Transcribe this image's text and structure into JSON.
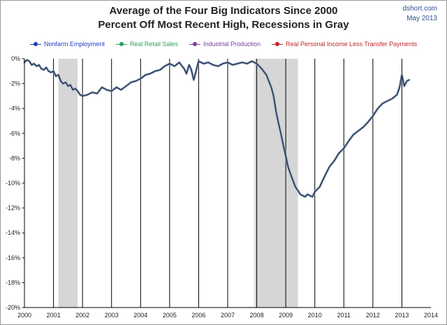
{
  "header": {
    "title_line1": "Average of the Four Big Indicators Since 2000",
    "title_line2": "Percent Off Most Recent High, Recessions in Gray",
    "source_line1": "dshort.com",
    "source_line2": "May 2013"
  },
  "chart_data": {
    "type": "line",
    "title": "Average of the Four Big Indicators Since 2000 Percent Off Most Recent High, Recessions in Gray",
    "xlabel": "",
    "ylabel": "",
    "xlim": [
      2000,
      2014
    ],
    "ylim": [
      -20,
      0
    ],
    "grid": "vertical lines at each year",
    "legend_position": "top",
    "x_ticks": [
      "2000",
      "2001",
      "2002",
      "2003",
      "2004",
      "2005",
      "2006",
      "2007",
      "2008",
      "2009",
      "2010",
      "2011",
      "2012",
      "2013",
      "2014"
    ],
    "y_ticks": [
      "0%",
      "-2%",
      "-4%",
      "-6%",
      "-8%",
      "-10%",
      "-12%",
      "-14%",
      "-16%",
      "-18%",
      "-20%"
    ],
    "legend": [
      {
        "label": "Nonfarm Employment",
        "color": "#1f3fbf"
      },
      {
        "label": "Real Retail Sales",
        "color": "#2e9e5e"
      },
      {
        "label": "Industrial Production",
        "color": "#7a3fa0"
      },
      {
        "label": "Real Personal Income Less Transfer Payments",
        "color": "#c0282b"
      }
    ],
    "recessions": [
      {
        "start": 2001.17,
        "end": 2001.83
      },
      {
        "start": 2007.92,
        "end": 2009.42
      }
    ],
    "line_color": "#2a3c5c",
    "shade_color": "#d6d6d6",
    "series": [
      {
        "x": [
          2000.0,
          2000.08,
          2000.17,
          2000.25,
          2000.33,
          2000.42,
          2000.5,
          2000.58,
          2000.67,
          2000.75,
          2000.83,
          2000.92,
          2001.0,
          2001.08,
          2001.17,
          2001.25,
          2001.33,
          2001.42,
          2001.5,
          2001.58,
          2001.67,
          2001.75,
          2001.83,
          2001.92,
          2002.0,
          2002.17,
          2002.33,
          2002.5,
          2002.67,
          2002.83,
          2003.0,
          2003.17,
          2003.33,
          2003.5,
          2003.67,
          2003.83,
          2004.0,
          2004.17,
          2004.33,
          2004.5,
          2004.67,
          2004.83,
          2005.0,
          2005.17,
          2005.33,
          2005.5,
          2005.58,
          2005.67,
          2005.75,
          2005.83,
          2006.0,
          2006.17,
          2006.33,
          2006.5,
          2006.67,
          2006.83,
          2007.0,
          2007.17,
          2007.33,
          2007.5,
          2007.67,
          2007.83,
          2008.0,
          2008.17,
          2008.33,
          2008.5,
          2008.58,
          2008.67,
          2008.75,
          2008.83,
          2008.92,
          2009.0,
          2009.08,
          2009.17,
          2009.25,
          2009.33,
          2009.42,
          2009.5,
          2009.58,
          2009.67,
          2009.75,
          2009.83,
          2009.92,
          2010.0,
          2010.17,
          2010.33,
          2010.5,
          2010.67,
          2010.83,
          2011.0,
          2011.17,
          2011.33,
          2011.5,
          2011.67,
          2011.83,
          2012.0,
          2012.17,
          2012.33,
          2012.5,
          2012.67,
          2012.83,
          2012.92,
          2013.0,
          2013.08,
          2013.17,
          2013.25
        ],
        "y": [
          -0.3,
          -0.1,
          -0.2,
          -0.5,
          -0.4,
          -0.6,
          -0.5,
          -0.8,
          -0.9,
          -0.7,
          -1.0,
          -1.1,
          -1.0,
          -1.4,
          -1.3,
          -1.8,
          -2.0,
          -1.9,
          -2.2,
          -2.1,
          -2.5,
          -2.4,
          -2.6,
          -2.9,
          -3.0,
          -2.9,
          -2.7,
          -2.8,
          -2.3,
          -2.5,
          -2.6,
          -2.3,
          -2.5,
          -2.2,
          -1.9,
          -1.8,
          -1.6,
          -1.3,
          -1.2,
          -1.0,
          -0.9,
          -0.6,
          -0.4,
          -0.6,
          -0.3,
          -0.8,
          -1.2,
          -0.5,
          -0.9,
          -1.7,
          -0.2,
          -0.4,
          -0.3,
          -0.5,
          -0.6,
          -0.4,
          -0.3,
          -0.5,
          -0.4,
          -0.3,
          -0.4,
          -0.2,
          -0.4,
          -0.8,
          -1.3,
          -2.3,
          -3.0,
          -4.3,
          -5.2,
          -6.0,
          -7.0,
          -7.8,
          -8.7,
          -9.3,
          -9.8,
          -10.3,
          -10.6,
          -10.9,
          -11.0,
          -11.1,
          -10.9,
          -11.0,
          -11.1,
          -10.7,
          -10.3,
          -9.5,
          -8.7,
          -8.2,
          -7.6,
          -7.2,
          -6.6,
          -6.1,
          -5.8,
          -5.5,
          -5.1,
          -4.6,
          -4.0,
          -3.6,
          -3.4,
          -3.2,
          -2.9,
          -2.3,
          -1.3,
          -2.2,
          -1.8,
          -1.7
        ]
      }
    ]
  }
}
